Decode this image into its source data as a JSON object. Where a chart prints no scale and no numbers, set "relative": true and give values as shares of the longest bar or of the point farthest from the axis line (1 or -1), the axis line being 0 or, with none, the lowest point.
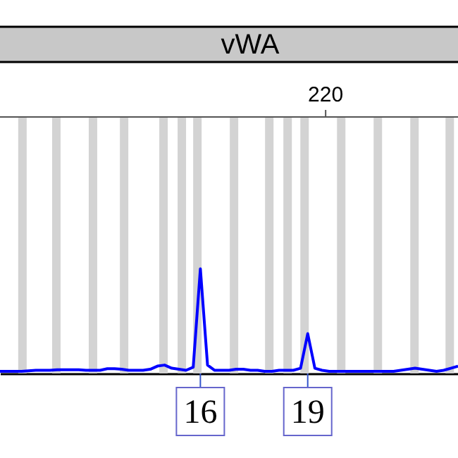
{
  "chart_data": {
    "type": "line",
    "title": "vWA",
    "relative": true,
    "categories": [
      null,
      null,
      null,
      null,
      null,
      null,
      null,
      null,
      null,
      null,
      null,
      null,
      null,
      null,
      null,
      null,
      null,
      null,
      null,
      null,
      null,
      null,
      null,
      null,
      null,
      null,
      null,
      null,
      null,
      null,
      null,
      null,
      null,
      null,
      null,
      null,
      null,
      null,
      null,
      null,
      null,
      null,
      null,
      null,
      null,
      null,
      null,
      null,
      null,
      null,
      null,
      null,
      null,
      null,
      null,
      null,
      null,
      null,
      null,
      null,
      null,
      null,
      null,
      null,
      null
    ],
    "series": [
      {
        "color": "#0000ff",
        "values": [
          0.02,
          0.02,
          0.02,
          0.02,
          0.025,
          0.03,
          0.03,
          0.03,
          0.035,
          0.035,
          0.035,
          0.035,
          0.03,
          0.03,
          0.03,
          0.045,
          0.045,
          0.04,
          0.03,
          0.03,
          0.03,
          0.04,
          0.07,
          0.08,
          0.05,
          0.04,
          0.03,
          0.06,
          1.0,
          0.08,
          0.03,
          0.03,
          0.03,
          0.04,
          0.04,
          0.03,
          0.03,
          0.02,
          0.02,
          0.03,
          0.03,
          0.03,
          0.05,
          0.38,
          0.05,
          0.03,
          0.02,
          0.02,
          0.02,
          0.02,
          0.02,
          0.02,
          0.02,
          0.02,
          0.02,
          0.02,
          0.03,
          0.04,
          0.05,
          0.04,
          0.03,
          0.02,
          0.03,
          0.05,
          0.07
        ]
      }
    ],
    "annotations": [
      "16",
      "19",
      "220"
    ]
  }
}
